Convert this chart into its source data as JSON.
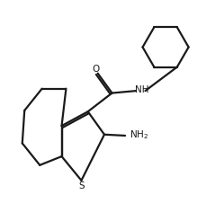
{
  "background": "#ffffff",
  "line_color": "#1a1a1a",
  "line_width": 1.6,
  "fig_width": 2.49,
  "fig_height": 2.46,
  "dpi": 100,
  "s_label": "S",
  "o_label": "O",
  "nh_label": "NH",
  "nh2_label": "NH",
  "nh2_sub": "2"
}
